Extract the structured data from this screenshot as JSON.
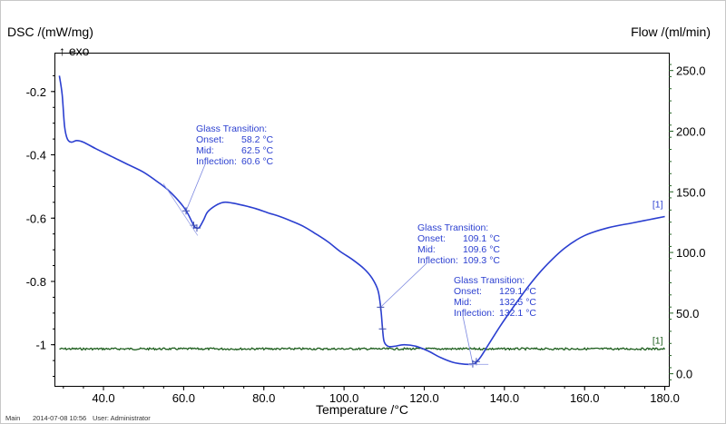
{
  "chart_data": {
    "type": "line",
    "title": "",
    "xlabel": "Temperature /°C",
    "ylabel_left": "DSC /(mW/mg)",
    "ylabel_right": "Flow /(ml/min)",
    "exo_label": "↑ exo",
    "xlim": [
      28,
      181
    ],
    "ylim_left": [
      -1.13,
      -0.08
    ],
    "ylim_right": [
      -10,
      264
    ],
    "x_ticks": [
      40,
      60,
      80,
      100,
      120,
      140,
      160,
      180
    ],
    "x_tick_labels": [
      "40.0",
      "60.0",
      "80.0",
      "100.0",
      "120.0",
      "140.0",
      "160.0",
      "180.0"
    ],
    "y_left_ticks": [
      -0.2,
      -0.4,
      -0.6,
      -0.8,
      -1
    ],
    "y_left_tick_labels": [
      "-0.2",
      "-0.4",
      "-0.6",
      "-0.8",
      "-1"
    ],
    "y_right_ticks": [
      250,
      200,
      150,
      100,
      50,
      0
    ],
    "y_right_tick_labels": [
      "250.0",
      "200.0",
      "150.0",
      "100.0",
      "50.0",
      "0.0"
    ],
    "grid": false,
    "series": [
      {
        "name": "",
        "axis": "left",
        "color": "#2b3fd0",
        "end_label": "[1]",
        "x": [
          29,
          29.7,
          30.3,
          31,
          32,
          33.3,
          35,
          38,
          42,
          46,
          50,
          54,
          56,
          58,
          60,
          61,
          62,
          62.6,
          63,
          63.5,
          64,
          65,
          66,
          68,
          70,
          72,
          75,
          78,
          81,
          84,
          87,
          90,
          93,
          96,
          99,
          102,
          105,
          107,
          108.5,
          109.2,
          109.6,
          110,
          111,
          112.5,
          115,
          118,
          121,
          124,
          127,
          129,
          131,
          132.5,
          134,
          136,
          139,
          142,
          146,
          150,
          155,
          160,
          166,
          172,
          176,
          180
        ],
        "y": [
          -0.15,
          -0.21,
          -0.31,
          -0.35,
          -0.36,
          -0.355,
          -0.36,
          -0.38,
          -0.405,
          -0.43,
          -0.455,
          -0.49,
          -0.51,
          -0.535,
          -0.565,
          -0.585,
          -0.61,
          -0.625,
          -0.63,
          -0.632,
          -0.628,
          -0.605,
          -0.58,
          -0.56,
          -0.55,
          -0.552,
          -0.56,
          -0.57,
          -0.583,
          -0.595,
          -0.61,
          -0.627,
          -0.65,
          -0.675,
          -0.705,
          -0.73,
          -0.76,
          -0.79,
          -0.83,
          -0.89,
          -0.95,
          -0.99,
          -1.005,
          -1.005,
          -1.0,
          -1.005,
          -1.02,
          -1.04,
          -1.055,
          -1.06,
          -1.062,
          -1.06,
          -1.04,
          -1.0,
          -0.94,
          -0.885,
          -0.815,
          -0.755,
          -0.695,
          -0.655,
          -0.63,
          -0.615,
          -0.605,
          -0.595
        ]
      },
      {
        "name": "",
        "axis": "right",
        "color": "#1d5e1d",
        "end_label": "[1]",
        "constant": 20.5,
        "x_range": [
          29,
          180
        ]
      }
    ],
    "annotations": [
      {
        "lines": [
          "Glass Transition:",
          "Onset:",
          "Mid:",
          "Inflection:"
        ],
        "values": [
          "",
          "58.2 °C",
          "62.5 °C",
          "60.6 °C"
        ],
        "mark_x": [
          60.6,
          62.5,
          63.3
        ]
      },
      {
        "lines": [
          "Glass Transition:",
          "Onset:",
          "Mid:",
          "Inflection:"
        ],
        "values": [
          "",
          "109.1 °C",
          "109.6 °C",
          "109.3 °C"
        ],
        "mark_x": [
          109.1,
          109.6
        ]
      },
      {
        "lines": [
          "Glass Transition:",
          "Onset:",
          "Mid:",
          "Inflection:"
        ],
        "values": [
          "",
          "129.1 °C",
          "132.5 °C",
          "132.1 °C"
        ],
        "mark_x": [
          132.1,
          133
        ]
      }
    ]
  },
  "footer": {
    "main": "Main",
    "timestamp": "2014-07-08 10:56",
    "user": "User: Administrator"
  }
}
